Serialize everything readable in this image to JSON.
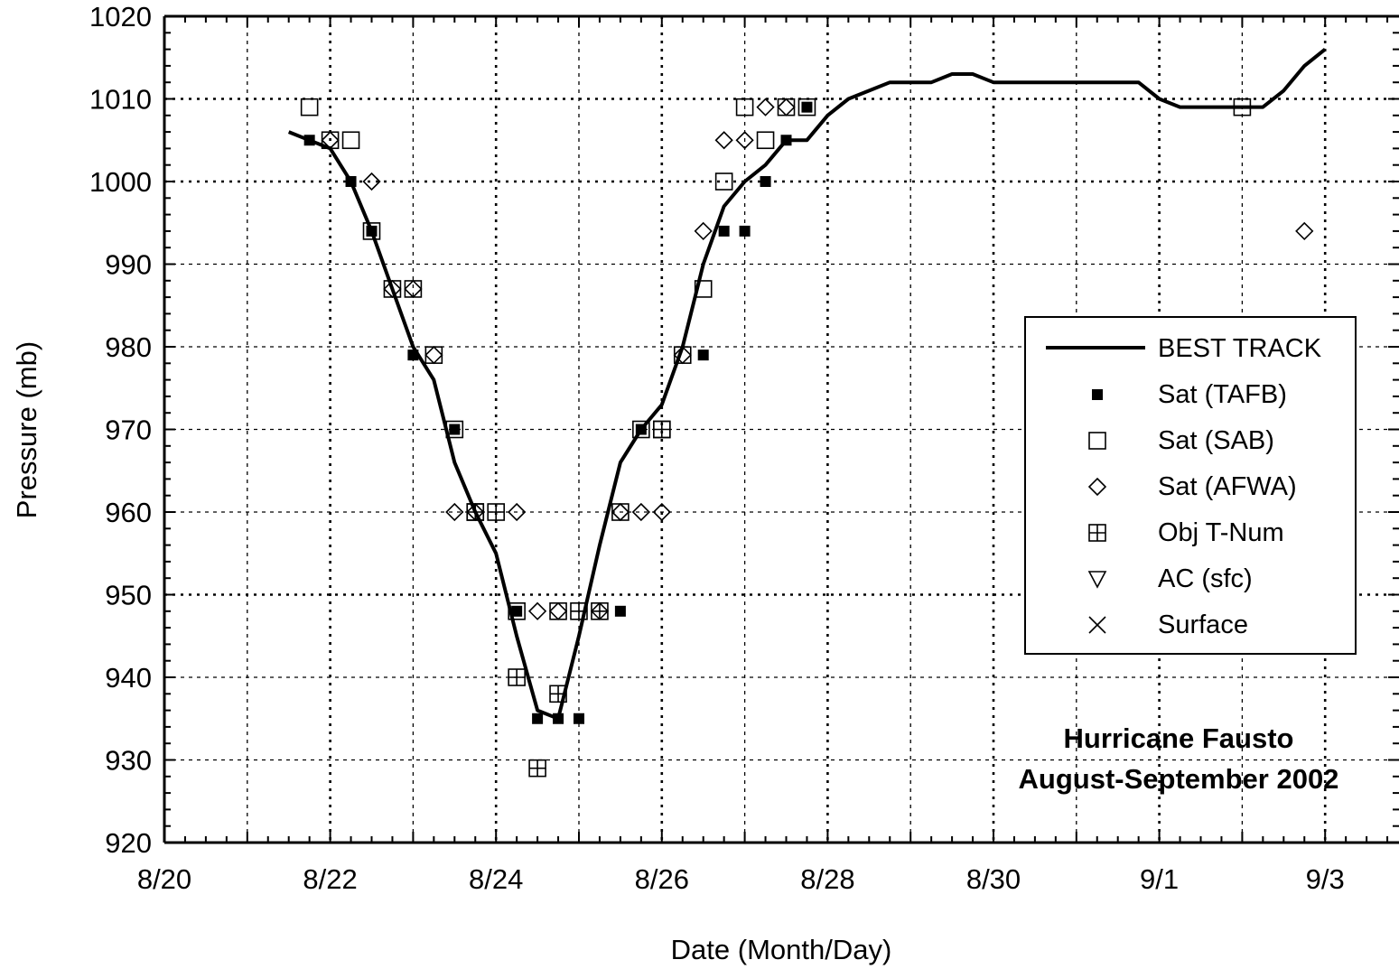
{
  "chart_data": {
    "type": "scatter",
    "ylabel": "Pressure (mb)",
    "xlabel": "Date (Month/Day)",
    "xlim": [
      "8/20",
      "9/4"
    ],
    "ylim": [
      920,
      1020
    ],
    "x_ticks": [
      "8/20",
      "8/22",
      "8/24",
      "8/26",
      "8/28",
      "8/30",
      "9/1",
      "9/3"
    ],
    "y_ticks": [
      "920",
      "930",
      "940",
      "950",
      "960",
      "970",
      "980",
      "990",
      "1000",
      "1010",
      "1020"
    ],
    "grid": true,
    "legend_position": "right",
    "annotation": [
      "Hurricane Fausto",
      "August-September 2002"
    ],
    "series": [
      {
        "name": "BEST TRACK",
        "marker": "line",
        "points": [
          [
            "8/21 12:00",
            1006
          ],
          [
            "8/21 18:00",
            1005
          ],
          [
            "8/22 00:00",
            1004
          ],
          [
            "8/22 06:00",
            1000
          ],
          [
            "8/22 12:00",
            994
          ],
          [
            "8/22 18:00",
            987
          ],
          [
            "8/23 00:00",
            980
          ],
          [
            "8/23 06:00",
            976
          ],
          [
            "8/23 12:00",
            966
          ],
          [
            "8/23 18:00",
            960
          ],
          [
            "8/24 00:00",
            955
          ],
          [
            "8/24 06:00",
            945
          ],
          [
            "8/24 12:00",
            936
          ],
          [
            "8/24 18:00",
            935
          ],
          [
            "8/25 00:00",
            945
          ],
          [
            "8/25 06:00",
            956
          ],
          [
            "8/25 12:00",
            966
          ],
          [
            "8/25 18:00",
            970
          ],
          [
            "8/26 00:00",
            973
          ],
          [
            "8/26 06:00",
            980
          ],
          [
            "8/26 12:00",
            990
          ],
          [
            "8/26 18:00",
            997
          ],
          [
            "8/27 00:00",
            1000
          ],
          [
            "8/27 06:00",
            1002
          ],
          [
            "8/27 12:00",
            1005
          ],
          [
            "8/27 18:00",
            1005
          ],
          [
            "8/28 00:00",
            1008
          ],
          [
            "8/28 06:00",
            1010
          ],
          [
            "8/28 12:00",
            1011
          ],
          [
            "8/28 18:00",
            1012
          ],
          [
            "8/29 00:00",
            1012
          ],
          [
            "8/29 06:00",
            1012
          ],
          [
            "8/29 12:00",
            1013
          ],
          [
            "8/29 18:00",
            1013
          ],
          [
            "8/30 00:00",
            1012
          ],
          [
            "8/30 12:00",
            1012
          ],
          [
            "8/31 00:00",
            1012
          ],
          [
            "8/31 12:00",
            1012
          ],
          [
            "8/31 18:00",
            1012
          ],
          [
            "9/1 00:00",
            1010
          ],
          [
            "9/1 06:00",
            1009
          ],
          [
            "9/1 12:00",
            1009
          ],
          [
            "9/2 00:00",
            1009
          ],
          [
            "9/2 06:00",
            1009
          ],
          [
            "9/2 12:00",
            1011
          ],
          [
            "9/2 18:00",
            1014
          ],
          [
            "9/3 00:00",
            1016
          ]
        ]
      },
      {
        "name": "Sat (TAFB)",
        "marker": "filled-square",
        "points": [
          [
            "8/21 18:00",
            1005
          ],
          [
            "8/22 06:00",
            1000
          ],
          [
            "8/22 12:00",
            994
          ],
          [
            "8/23 00:00",
            979
          ],
          [
            "8/23 12:00",
            970
          ],
          [
            "8/24 06:00",
            948
          ],
          [
            "8/24 12:00",
            935
          ],
          [
            "8/24 18:00",
            935
          ],
          [
            "8/25 00:00",
            935
          ],
          [
            "8/25 12:00",
            948
          ],
          [
            "8/25 18:00",
            970
          ],
          [
            "8/26 12:00",
            979
          ],
          [
            "8/26 18:00",
            994
          ],
          [
            "8/27 00:00",
            994
          ],
          [
            "8/27 06:00",
            1000
          ],
          [
            "8/27 12:00",
            1005
          ],
          [
            "8/27 18:00",
            1009
          ]
        ]
      },
      {
        "name": "Sat (SAB)",
        "marker": "open-square",
        "points": [
          [
            "8/21 18:00",
            1009
          ],
          [
            "8/22 00:00",
            1005
          ],
          [
            "8/22 06:00",
            1005
          ],
          [
            "8/22 12:00",
            994
          ],
          [
            "8/22 18:00",
            987
          ],
          [
            "8/23 00:00",
            987
          ],
          [
            "8/23 06:00",
            979
          ],
          [
            "8/23 12:00",
            970
          ],
          [
            "8/23 18:00",
            960
          ],
          [
            "8/24 06:00",
            948
          ],
          [
            "8/24 18:00",
            948
          ],
          [
            "8/25 12:00",
            960
          ],
          [
            "8/25 18:00",
            970
          ],
          [
            "8/26 00:00",
            970
          ],
          [
            "8/26 06:00",
            979
          ],
          [
            "8/26 12:00",
            987
          ],
          [
            "8/26 18:00",
            1000
          ],
          [
            "8/27 00:00",
            1009
          ],
          [
            "8/27 06:00",
            1005
          ],
          [
            "8/27 12:00",
            1009
          ],
          [
            "8/27 18:00",
            1009
          ],
          [
            "9/2 00:00",
            1009
          ]
        ]
      },
      {
        "name": "Sat (AFWA)",
        "marker": "diamond",
        "points": [
          [
            "8/22 00:00",
            1005
          ],
          [
            "8/22 12:00",
            1000
          ],
          [
            "8/22 18:00",
            987
          ],
          [
            "8/23 00:00",
            987
          ],
          [
            "8/23 06:00",
            979
          ],
          [
            "8/23 12:00",
            960
          ],
          [
            "8/23 18:00",
            960
          ],
          [
            "8/24 06:00",
            960
          ],
          [
            "8/24 12:00",
            948
          ],
          [
            "8/24 18:00",
            948
          ],
          [
            "8/25 06:00",
            948
          ],
          [
            "8/25 12:00",
            960
          ],
          [
            "8/25 18:00",
            960
          ],
          [
            "8/26 00:00",
            960
          ],
          [
            "8/26 06:00",
            979
          ],
          [
            "8/26 12:00",
            994
          ],
          [
            "8/26 18:00",
            1005
          ],
          [
            "8/27 00:00",
            1005
          ],
          [
            "8/27 06:00",
            1009
          ],
          [
            "8/27 12:00",
            1009
          ],
          [
            "9/2 18:00",
            994
          ]
        ]
      },
      {
        "name": "Obj T-Num",
        "marker": "boxed-cross",
        "points": [
          [
            "8/23 18:00",
            960
          ],
          [
            "8/24 00:00",
            960
          ],
          [
            "8/24 06:00",
            940
          ],
          [
            "8/24 12:00",
            929
          ],
          [
            "8/24 18:00",
            938
          ],
          [
            "8/25 00:00",
            948
          ],
          [
            "8/25 06:00",
            948
          ],
          [
            "8/26 00:00",
            970
          ]
        ]
      },
      {
        "name": "AC (sfc)",
        "marker": "triangle-down",
        "points": []
      },
      {
        "name": "Surface",
        "marker": "x",
        "points": []
      }
    ]
  }
}
